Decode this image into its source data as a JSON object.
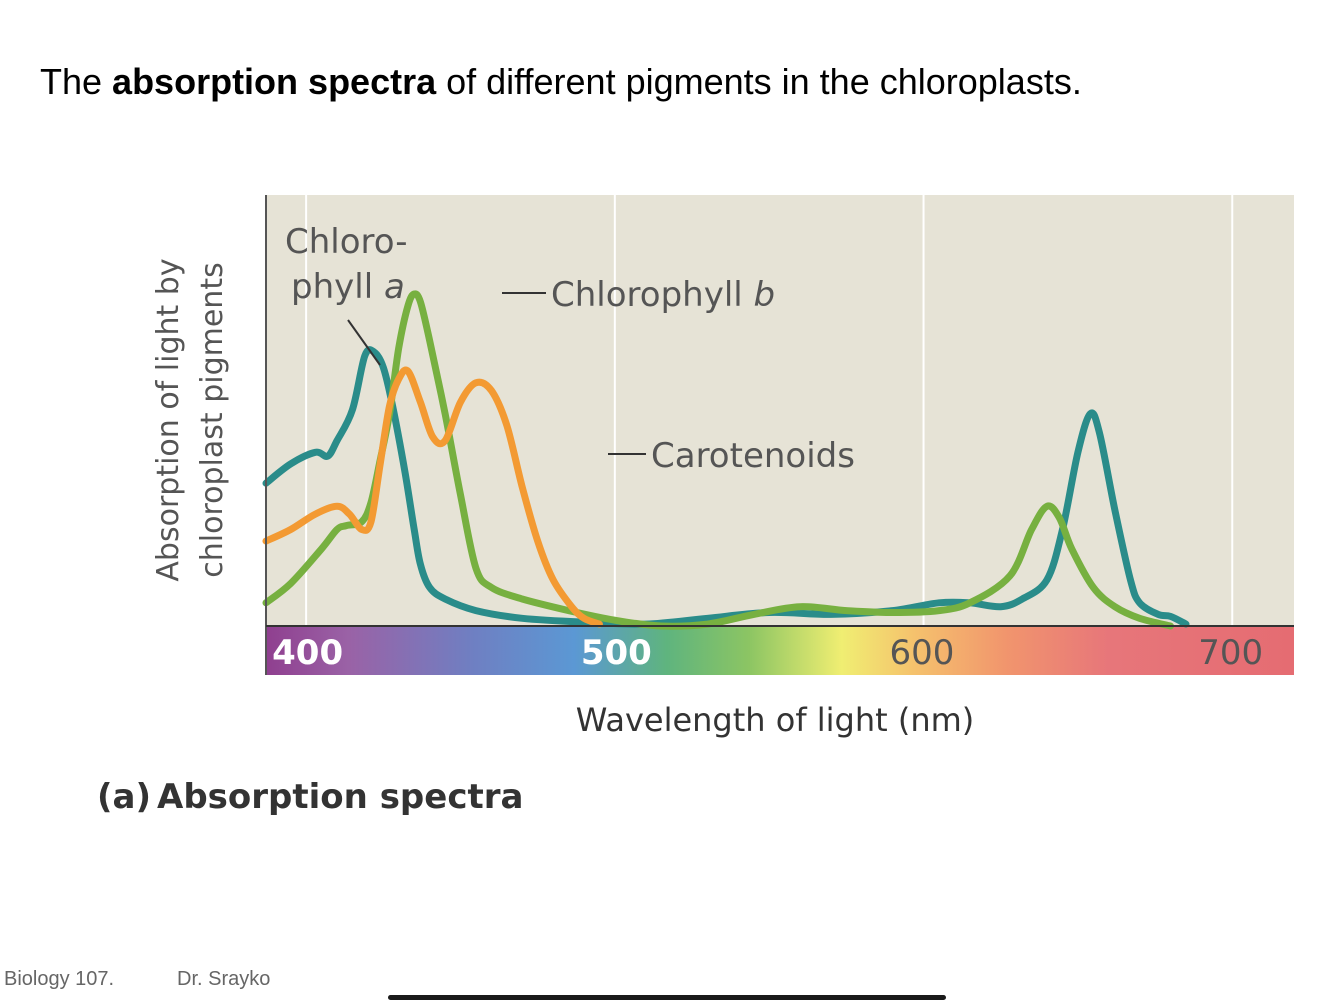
{
  "slide": {
    "title_pre": "The ",
    "title_bold": "absorption spectra",
    "title_post": " of different pigments in the chloroplasts.",
    "footer_course": "Biology 107.",
    "footer_author": "Dr. Srayko"
  },
  "colors": {
    "plot_background": "#e6e3d6",
    "chlorophyll_a": "#2a8c8a",
    "chlorophyll_b": "#77b040",
    "carotenoids": "#f39a33",
    "grid": "#ffffff",
    "axis": "#555555"
  },
  "chart_data": {
    "type": "line",
    "title": "",
    "caption_tag": "(a)",
    "caption_text": "Absorption spectra",
    "xlabel": "Wavelength of light (nm)",
    "ylabel_line1": "Absorption of light by",
    "ylabel_line2": "chloroplast pigments",
    "xlim": [
      387,
      720
    ],
    "ylim": [
      0,
      1
    ],
    "x_ticks": [
      400,
      500,
      600,
      700
    ],
    "x_tick_labels": [
      "400",
      "500",
      "600",
      "700"
    ],
    "grid": true,
    "y_ticks_shown": false,
    "spectrum_bar": true,
    "series": [
      {
        "key": "chlorophyll_a",
        "label_line1": "Chloro-",
        "label_line2": "phyll ",
        "label_italic": "a",
        "points": [
          [
            387,
            0.37
          ],
          [
            395,
            0.42
          ],
          [
            403,
            0.45
          ],
          [
            407,
            0.44
          ],
          [
            410,
            0.48
          ],
          [
            415,
            0.56
          ],
          [
            419,
            0.7
          ],
          [
            422,
            0.71
          ],
          [
            425,
            0.67
          ],
          [
            428,
            0.57
          ],
          [
            432,
            0.4
          ],
          [
            435,
            0.25
          ],
          [
            437,
            0.16
          ],
          [
            440,
            0.1
          ],
          [
            445,
            0.07
          ],
          [
            455,
            0.04
          ],
          [
            470,
            0.02
          ],
          [
            490,
            0.01
          ],
          [
            510,
            0.005
          ],
          [
            530,
            0.02
          ],
          [
            550,
            0.035
          ],
          [
            570,
            0.03
          ],
          [
            590,
            0.04
          ],
          [
            605,
            0.06
          ],
          [
            615,
            0.06
          ],
          [
            625,
            0.05
          ],
          [
            632,
            0.07
          ],
          [
            640,
            0.12
          ],
          [
            645,
            0.25
          ],
          [
            650,
            0.45
          ],
          [
            654,
            0.55
          ],
          [
            657,
            0.5
          ],
          [
            662,
            0.3
          ],
          [
            667,
            0.12
          ],
          [
            670,
            0.06
          ],
          [
            676,
            0.03
          ],
          [
            680,
            0.025
          ],
          [
            685,
            0.005
          ]
        ]
      },
      {
        "key": "chlorophyll_b",
        "label_line1": "Chlorophyll ",
        "label_italic": "b",
        "points": [
          [
            387,
            0.06
          ],
          [
            395,
            0.11
          ],
          [
            405,
            0.2
          ],
          [
            410,
            0.25
          ],
          [
            413,
            0.26
          ],
          [
            418,
            0.27
          ],
          [
            421,
            0.32
          ],
          [
            424,
            0.43
          ],
          [
            427,
            0.55
          ],
          [
            430,
            0.72
          ],
          [
            433,
            0.83
          ],
          [
            435,
            0.86
          ],
          [
            437,
            0.84
          ],
          [
            440,
            0.74
          ],
          [
            445,
            0.55
          ],
          [
            450,
            0.34
          ],
          [
            455,
            0.15
          ],
          [
            460,
            0.1
          ],
          [
            470,
            0.07
          ],
          [
            485,
            0.04
          ],
          [
            500,
            0.015
          ],
          [
            515,
            0.0
          ],
          [
            530,
            0.005
          ],
          [
            545,
            0.03
          ],
          [
            560,
            0.05
          ],
          [
            575,
            0.04
          ],
          [
            590,
            0.035
          ],
          [
            605,
            0.04
          ],
          [
            615,
            0.06
          ],
          [
            628,
            0.13
          ],
          [
            635,
            0.25
          ],
          [
            640,
            0.31
          ],
          [
            644,
            0.28
          ],
          [
            648,
            0.2
          ],
          [
            655,
            0.1
          ],
          [
            662,
            0.05
          ],
          [
            670,
            0.02
          ],
          [
            680,
            0.0
          ]
        ]
      },
      {
        "key": "carotenoids",
        "label_line1": "Carotenoids",
        "points": [
          [
            387,
            0.22
          ],
          [
            395,
            0.25
          ],
          [
            403,
            0.29
          ],
          [
            410,
            0.31
          ],
          [
            414,
            0.29
          ],
          [
            418,
            0.25
          ],
          [
            421,
            0.27
          ],
          [
            424,
            0.42
          ],
          [
            427,
            0.57
          ],
          [
            430,
            0.64
          ],
          [
            433,
            0.66
          ],
          [
            437,
            0.58
          ],
          [
            441,
            0.49
          ],
          [
            445,
            0.48
          ],
          [
            450,
            0.58
          ],
          [
            455,
            0.63
          ],
          [
            460,
            0.61
          ],
          [
            465,
            0.52
          ],
          [
            470,
            0.36
          ],
          [
            475,
            0.22
          ],
          [
            480,
            0.12
          ],
          [
            486,
            0.05
          ],
          [
            490,
            0.02
          ],
          [
            495,
            0.005
          ]
        ]
      }
    ]
  }
}
